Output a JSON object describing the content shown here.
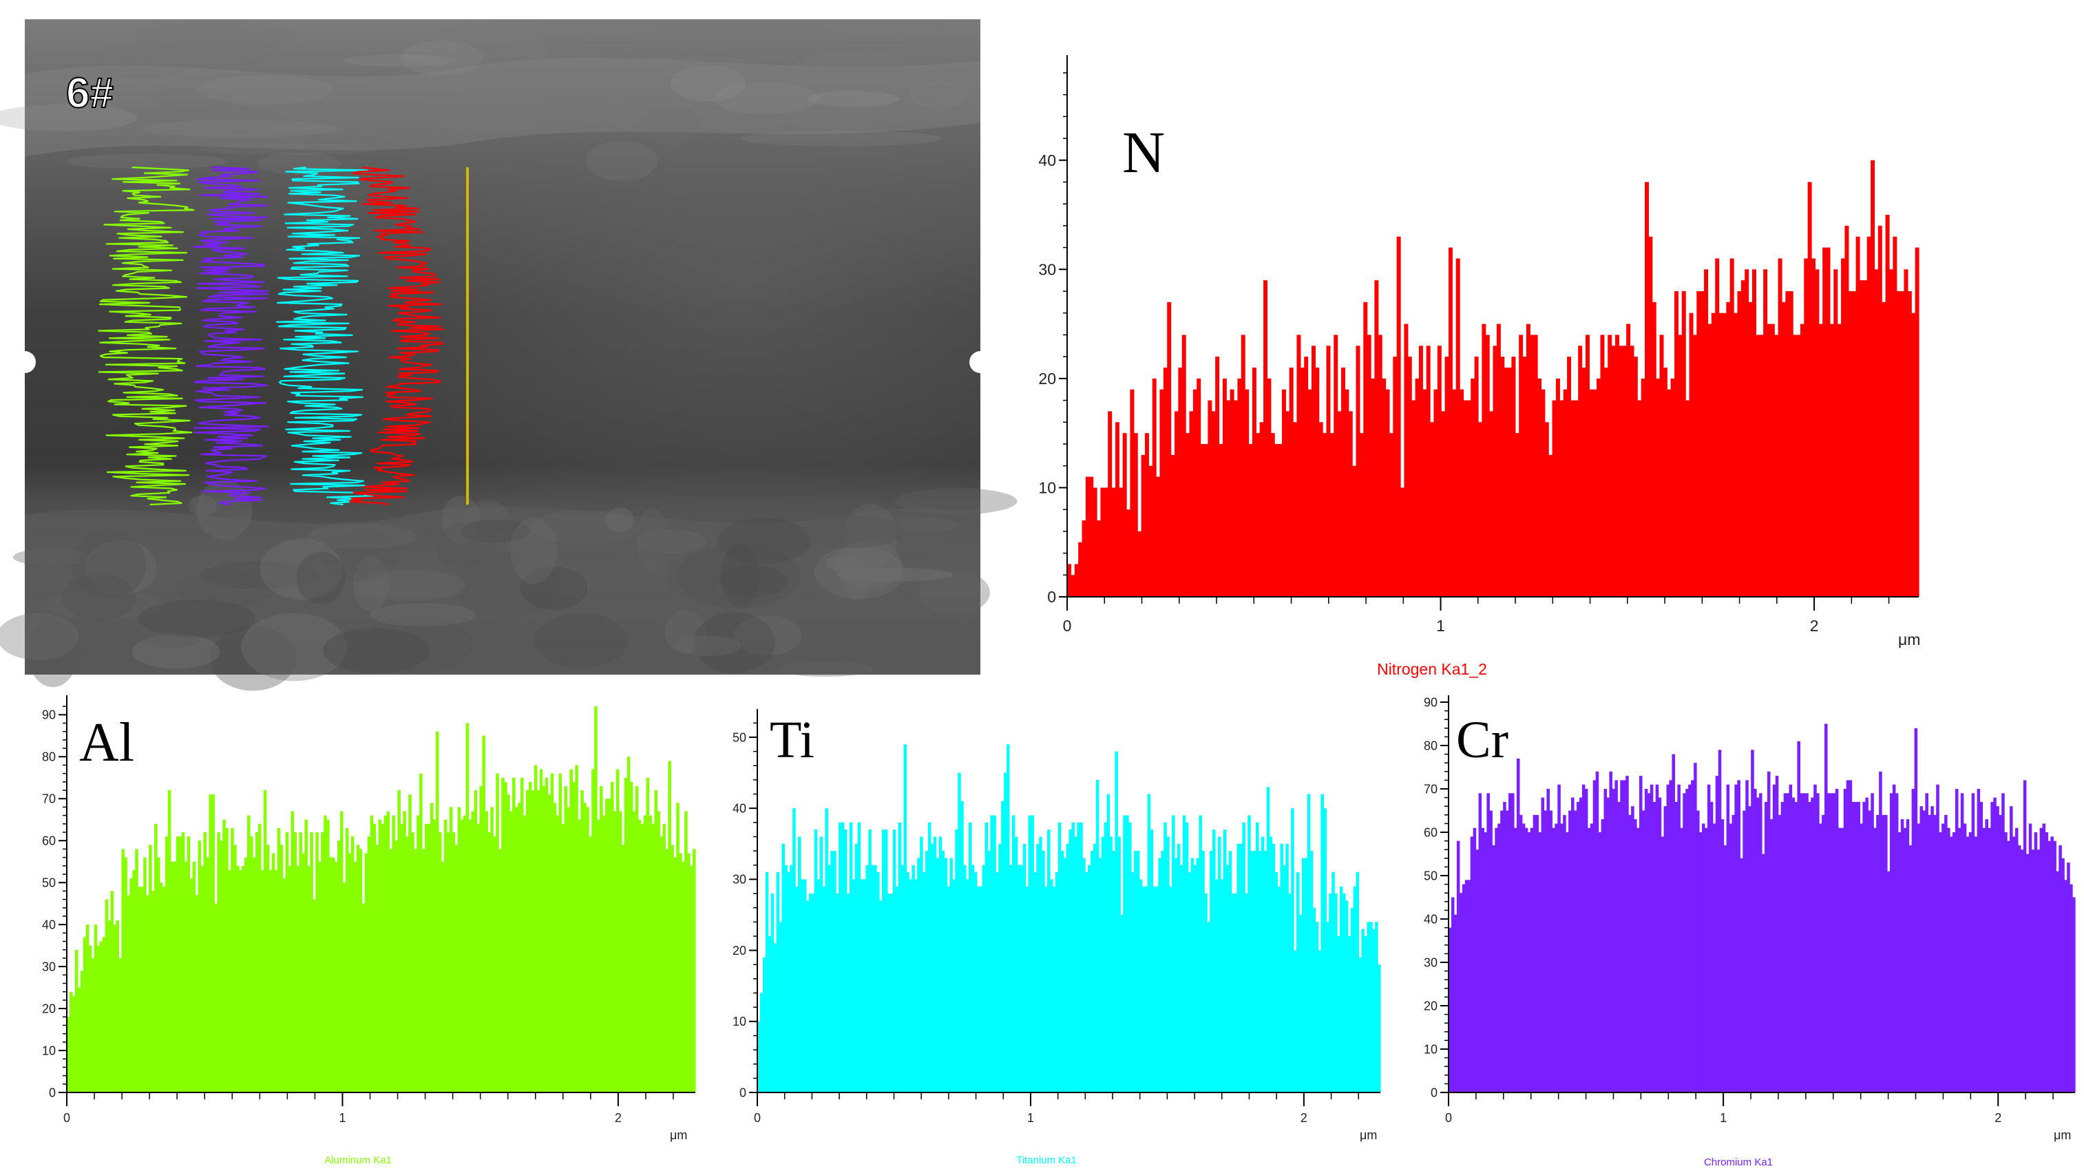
{
  "sem": {
    "label": "6#",
    "colors": {
      "Al": "#88ff00",
      "Ti": "#00ffff",
      "Cr": "#7a1fff",
      "N": "#ff0000",
      "line": "#d4b800"
    }
  },
  "chart_data": [
    {
      "id": "nitrogen",
      "type": "bar",
      "element_label": "N",
      "series_name": "Nitrogen Ka1_2",
      "unit": "μm",
      "color": "#ff0000",
      "xlim": [
        0,
        2.28
      ],
      "ylim": [
        0,
        49
      ],
      "x_ticks": [
        0,
        1,
        2
      ],
      "y_ticks": [
        0,
        10,
        20,
        30,
        40
      ],
      "count": 230,
      "trend": [
        [
          0,
          5
        ],
        [
          0.05,
          9
        ],
        [
          0.15,
          14
        ],
        [
          0.3,
          17
        ],
        [
          0.5,
          18.5
        ],
        [
          0.7,
          19.5
        ],
        [
          1.0,
          20
        ],
        [
          1.3,
          21
        ],
        [
          1.5,
          22
        ],
        [
          1.7,
          24.5
        ],
        [
          1.9,
          28
        ],
        [
          2.1,
          29
        ],
        [
          2.28,
          29
        ]
      ],
      "noise": 7,
      "seed": 11
    },
    {
      "id": "aluminum",
      "type": "bar",
      "element_label": "Al",
      "series_name": "Aluminum Ka1",
      "unit": "μm",
      "color": "#88ff00",
      "xlim": [
        0,
        2.28
      ],
      "ylim": [
        0,
        93
      ],
      "x_ticks": [
        0,
        1,
        2
      ],
      "y_ticks": [
        0,
        10,
        20,
        30,
        40,
        50,
        60,
        70,
        80,
        90
      ],
      "count": 230,
      "trend": [
        [
          0,
          20
        ],
        [
          0.05,
          32
        ],
        [
          0.15,
          45
        ],
        [
          0.3,
          54
        ],
        [
          0.5,
          58
        ],
        [
          0.8,
          60
        ],
        [
          1.0,
          61
        ],
        [
          1.3,
          64
        ],
        [
          1.6,
          68
        ],
        [
          1.9,
          72
        ],
        [
          2.05,
          70
        ],
        [
          2.2,
          63
        ],
        [
          2.28,
          60
        ]
      ],
      "noise": 10,
      "seed": 23
    },
    {
      "id": "titanium",
      "type": "bar",
      "element_label": "Ti",
      "series_name": "Titanium Ka1",
      "unit": "μm",
      "color": "#00ffff",
      "xlim": [
        0,
        2.28
      ],
      "ylim": [
        0,
        53
      ],
      "x_ticks": [
        0,
        1,
        2
      ],
      "y_ticks": [
        0,
        10,
        20,
        30,
        40,
        50
      ],
      "count": 230,
      "trend": [
        [
          0,
          12
        ],
        [
          0.04,
          22
        ],
        [
          0.1,
          30
        ],
        [
          0.3,
          33
        ],
        [
          0.7,
          34
        ],
        [
          1.0,
          34
        ],
        [
          1.5,
          34
        ],
        [
          1.8,
          33
        ],
        [
          2.05,
          28
        ],
        [
          2.2,
          24
        ],
        [
          2.28,
          22
        ]
      ],
      "noise": 8,
      "seed": 37
    },
    {
      "id": "chromium",
      "type": "bar",
      "element_label": "Cr",
      "series_name": "Chromium Ka1",
      "unit": "μm",
      "color": "#7a1fff",
      "xlim": [
        0,
        2.28
      ],
      "ylim": [
        0,
        90
      ],
      "x_ticks": [
        0,
        1,
        2
      ],
      "y_ticks": [
        0,
        10,
        20,
        30,
        40,
        50,
        60,
        70,
        80,
        90
      ],
      "count": 230,
      "trend": [
        [
          0,
          38
        ],
        [
          0.05,
          52
        ],
        [
          0.15,
          62
        ],
        [
          0.4,
          66
        ],
        [
          0.8,
          67
        ],
        [
          1.2,
          67
        ],
        [
          1.6,
          66
        ],
        [
          1.9,
          65
        ],
        [
          2.1,
          62
        ],
        [
          2.2,
          54
        ],
        [
          2.28,
          45
        ]
      ],
      "noise": 9,
      "seed": 53
    }
  ]
}
